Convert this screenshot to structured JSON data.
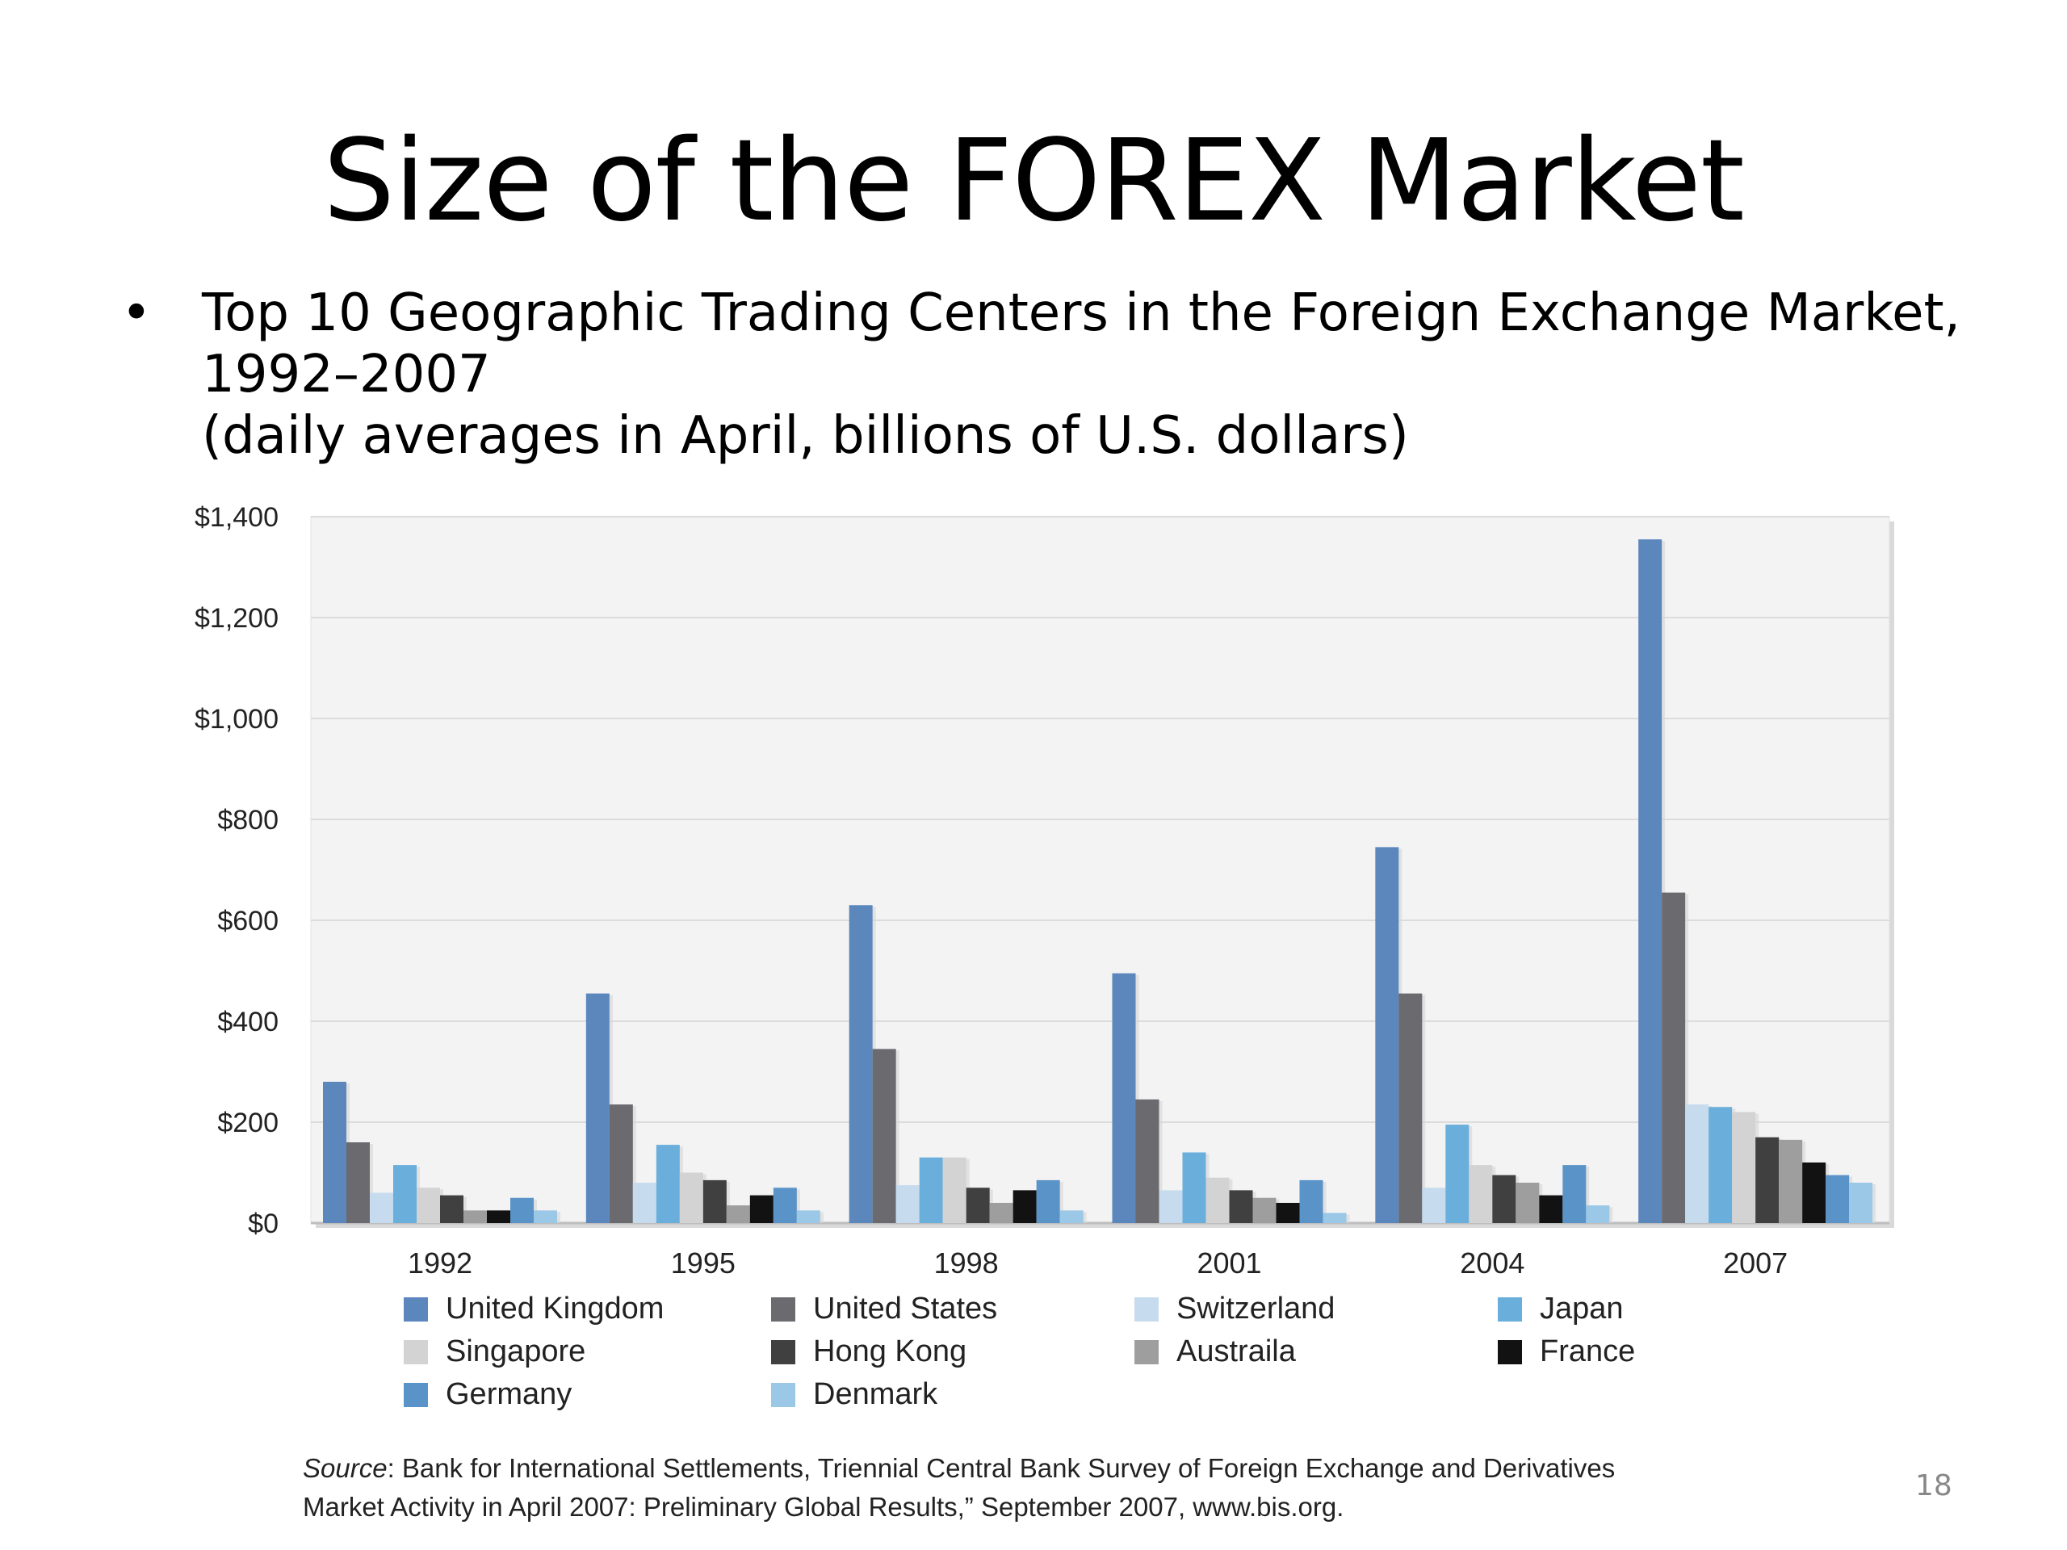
{
  "slide": {
    "title": "Size of the FOREX Market",
    "bullet_symbol": "•",
    "bullet_lines": [
      "Top 10 Geographic Trading Centers in the Foreign Exchange Market,",
      "1992–2007",
      "(daily averages in April, billions of U.S. dollars)"
    ],
    "source_label": "Source",
    "source_line1": ": Bank for International Settlements,   Triennial Central Bank Survey of Foreign Exchange and Derivatives",
    "source_line2": "Market Activity in April 2007: Preliminary Global Results,” September 2007, www.bis.org.",
    "page_number": "18"
  },
  "chart_data": {
    "type": "bar",
    "categories": [
      "1992",
      "1995",
      "1998",
      "2001",
      "2004",
      "2007"
    ],
    "ylim": [
      0,
      1400
    ],
    "yticks": [
      {
        "value": 0,
        "label": "$0"
      },
      {
        "value": 200,
        "label": "$200"
      },
      {
        "value": 400,
        "label": "$400"
      },
      {
        "value": 600,
        "label": "$600"
      },
      {
        "value": 800,
        "label": "$800"
      },
      {
        "value": 1000,
        "label": "$1,000"
      },
      {
        "value": 1200,
        "label": "$1,200"
      },
      {
        "value": 1400,
        "label": "$1,400"
      }
    ],
    "grid": true,
    "legend_position": "bottom",
    "series": [
      {
        "name": "United Kingdom",
        "color": "#5b87bd",
        "values": [
          280,
          455,
          630,
          495,
          745,
          1355
        ]
      },
      {
        "name": "United States",
        "color": "#6b6a6f",
        "values": [
          160,
          235,
          345,
          245,
          455,
          655
        ]
      },
      {
        "name": "Switzerland",
        "color": "#c6dcee",
        "values": [
          60,
          80,
          75,
          65,
          70,
          235
        ]
      },
      {
        "name": "Japan",
        "color": "#6aaedb",
        "values": [
          115,
          155,
          130,
          140,
          195,
          230
        ]
      },
      {
        "name": "Singapore",
        "color": "#d3d3d3",
        "values": [
          70,
          100,
          130,
          90,
          115,
          220
        ]
      },
      {
        "name": "Hong Kong",
        "color": "#404040",
        "values": [
          55,
          85,
          70,
          65,
          95,
          170
        ]
      },
      {
        "name": "Austraila",
        "color": "#9e9e9e",
        "values": [
          25,
          35,
          40,
          50,
          80,
          165
        ]
      },
      {
        "name": "France",
        "color": "#121212",
        "values": [
          25,
          55,
          65,
          40,
          55,
          120
        ]
      },
      {
        "name": "Germany",
        "color": "#5a93c7",
        "values": [
          50,
          70,
          85,
          85,
          115,
          95
        ]
      },
      {
        "name": "Denmark",
        "color": "#9ac8e6",
        "values": [
          25,
          25,
          25,
          20,
          35,
          80
        ]
      }
    ]
  }
}
